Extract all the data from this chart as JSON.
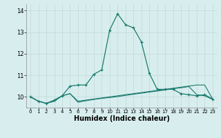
{
  "xlabel": "Humidex (Indice chaleur)",
  "x_values": [
    0,
    1,
    2,
    3,
    4,
    5,
    6,
    7,
    8,
    9,
    10,
    11,
    12,
    13,
    14,
    15,
    16,
    17,
    18,
    19,
    20,
    21,
    22,
    23
  ],
  "line_main": [
    10.0,
    9.8,
    9.7,
    9.85,
    10.05,
    10.5,
    10.55,
    10.55,
    11.05,
    11.25,
    13.1,
    13.85,
    13.35,
    13.2,
    12.55,
    11.1,
    10.35,
    10.35,
    10.35,
    10.15,
    10.1,
    10.05,
    10.1,
    9.9
  ],
  "line_flat1": [
    10.0,
    9.8,
    9.7,
    9.8,
    10.05,
    10.15,
    9.8,
    9.85,
    9.9,
    9.95,
    10.0,
    10.05,
    10.1,
    10.15,
    10.2,
    10.25,
    10.3,
    10.35,
    10.4,
    10.45,
    10.5,
    10.55,
    10.55,
    9.9
  ],
  "line_flat2": [
    10.0,
    9.8,
    9.7,
    9.8,
    10.05,
    10.15,
    9.75,
    9.82,
    9.88,
    9.93,
    9.97,
    10.01,
    10.07,
    10.12,
    10.17,
    10.22,
    10.27,
    10.32,
    10.38,
    10.42,
    10.48,
    10.1,
    10.05,
    9.88
  ],
  "bg_color": "#d8eeee",
  "line_color": "#1a7a6e",
  "grid_major_color": "#c0d8d8",
  "grid_minor_color": "#dce8e8",
  "ylim": [
    9.5,
    14.3
  ],
  "yticks": [
    10,
    11,
    12,
    13,
    14
  ],
  "xlim": [
    -0.5,
    23.5
  ],
  "xlabel_fontsize": 7,
  "ytick_fontsize": 6,
  "xtick_fontsize": 5
}
